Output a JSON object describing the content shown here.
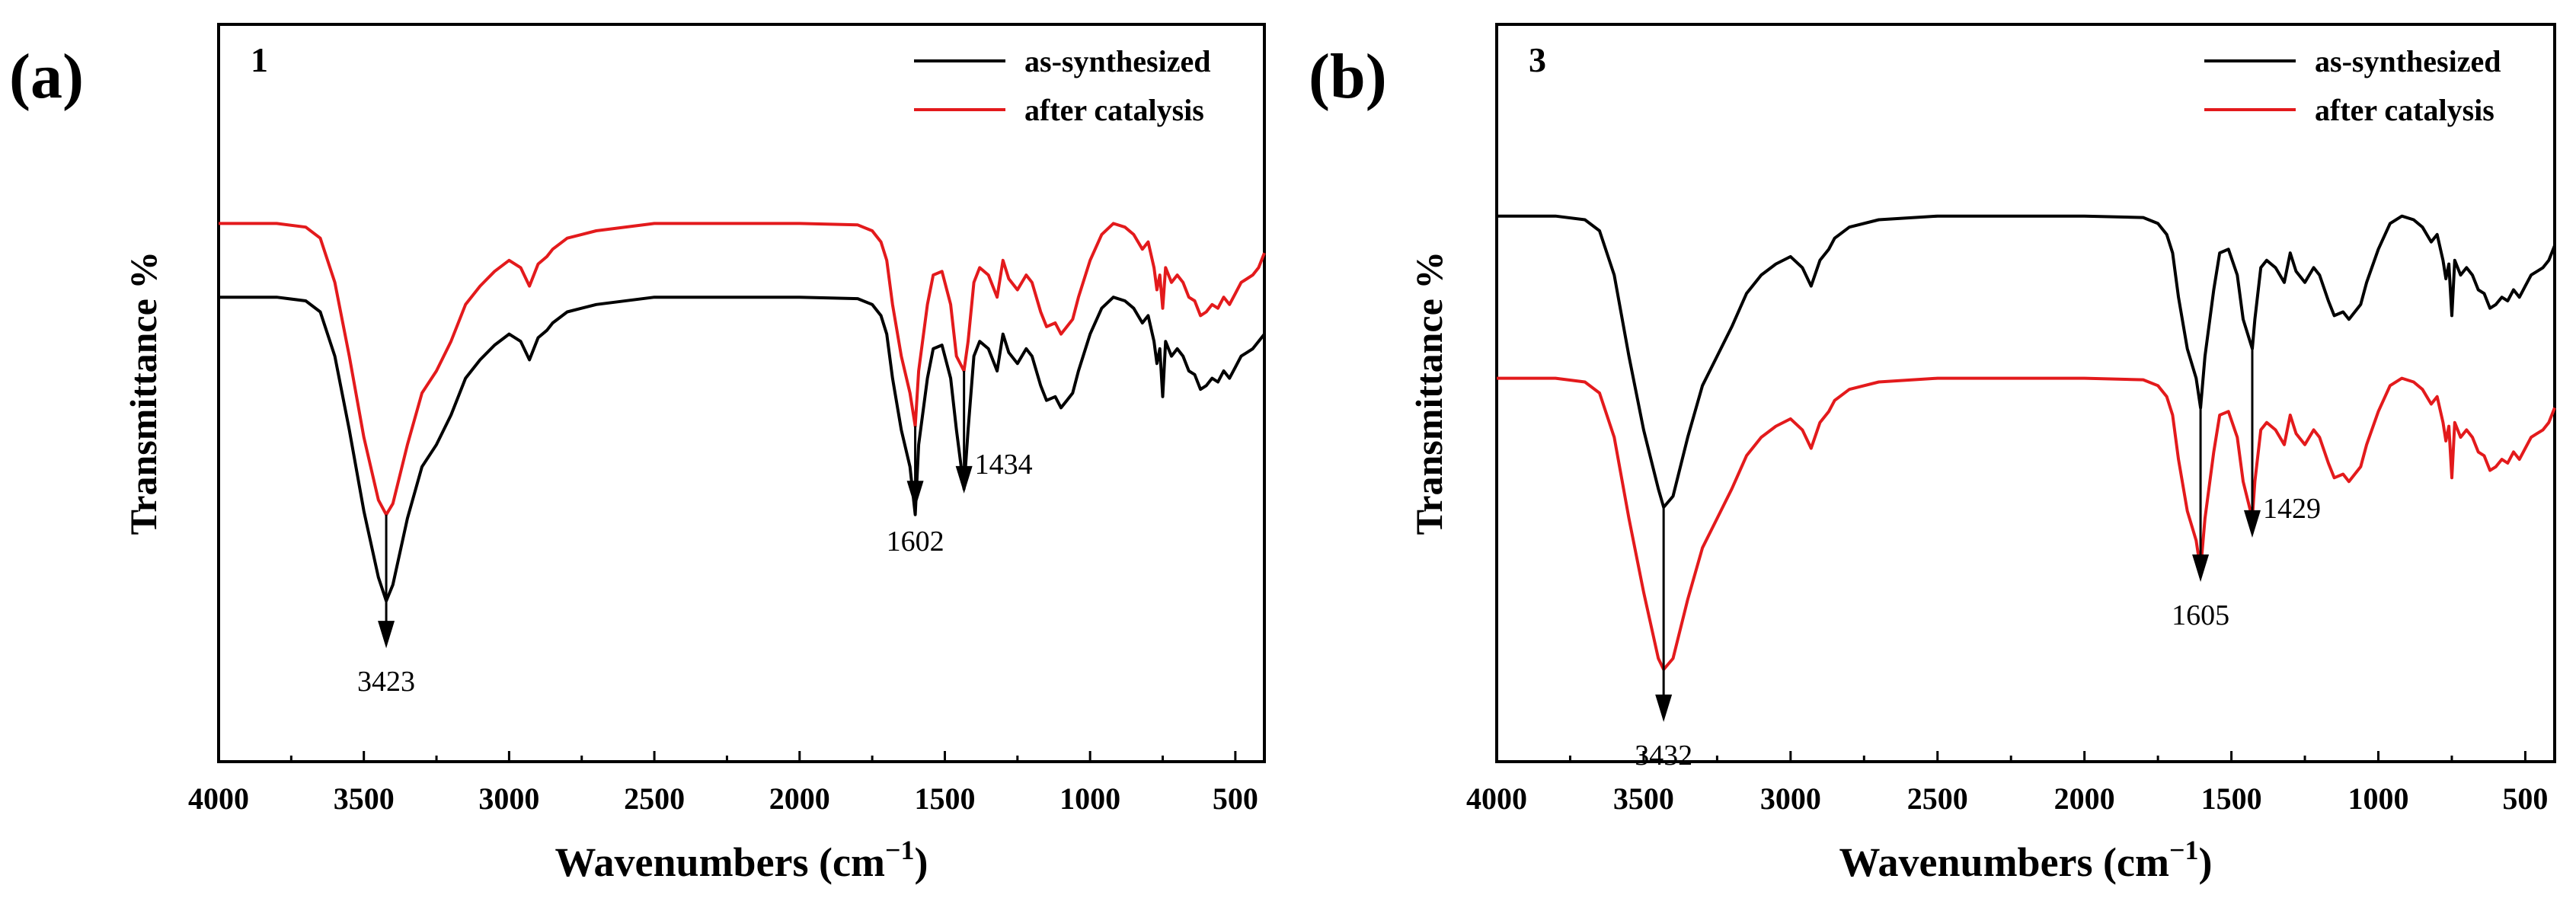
{
  "chart_data": [
    {
      "type": "line",
      "panel_label": "(a)",
      "sample_label": "1",
      "xlabel_main": "Wavenumbers (cm",
      "xlabel_sup": "−1",
      "xlabel_close": ")",
      "ylabel": "Transmittance %",
      "xlim": [
        4000,
        400
      ],
      "xticks": [
        4000,
        3500,
        3000,
        2500,
        2000,
        1500,
        1000,
        500
      ],
      "ylim": [
        0,
        100
      ],
      "yticks_shown": false,
      "legend": [
        {
          "name": "as-synthesized",
          "color": "#000000"
        },
        {
          "name": "after catalysis",
          "color": "#e31a1c"
        }
      ],
      "series": [
        {
          "name": "as-synthesized",
          "color": "#000000",
          "x": [
            4000,
            3800,
            3700,
            3650,
            3600,
            3550,
            3500,
            3450,
            3423,
            3400,
            3350,
            3300,
            3250,
            3200,
            3150,
            3100,
            3050,
            3000,
            2960,
            2930,
            2900,
            2870,
            2850,
            2800,
            2700,
            2500,
            2300,
            2000,
            1800,
            1750,
            1720,
            1700,
            1680,
            1650,
            1620,
            1602,
            1590,
            1560,
            1540,
            1510,
            1480,
            1460,
            1434,
            1420,
            1400,
            1380,
            1350,
            1320,
            1300,
            1280,
            1250,
            1220,
            1200,
            1170,
            1150,
            1120,
            1100,
            1080,
            1060,
            1040,
            1000,
            960,
            920,
            880,
            850,
            820,
            800,
            780,
            770,
            760,
            750,
            740,
            720,
            700,
            680,
            660,
            640,
            620,
            600,
            580,
            560,
            540,
            520,
            500,
            480,
            460,
            440,
            420,
            400
          ],
          "y": [
            63,
            63,
            62.5,
            61,
            55,
            45,
            34,
            25,
            21.8,
            24,
            33,
            40,
            43,
            47,
            52,
            54.5,
            56.5,
            58,
            57,
            54.5,
            57.5,
            58.5,
            59.5,
            61,
            62,
            63,
            63,
            63,
            62.8,
            62,
            60.5,
            58,
            52,
            45,
            40,
            33.5,
            43,
            52,
            56,
            56.5,
            52,
            45,
            37,
            45,
            55,
            57,
            56,
            53,
            58,
            55.5,
            54,
            56,
            55,
            51,
            49,
            49.5,
            48,
            49,
            50,
            53,
            58,
            61.5,
            63,
            62.5,
            61.5,
            59.5,
            60.5,
            57,
            54,
            56,
            49.5,
            57,
            55,
            56,
            55,
            53,
            52.5,
            50.5,
            51,
            52,
            51.5,
            53,
            52,
            53.5,
            55,
            55.5,
            56,
            57,
            58
          ]
        },
        {
          "name": "after catalysis",
          "color": "#e31a1c",
          "x": [
            4000,
            3800,
            3700,
            3650,
            3600,
            3550,
            3500,
            3450,
            3423,
            3400,
            3350,
            3300,
            3250,
            3200,
            3150,
            3100,
            3050,
            3000,
            2960,
            2930,
            2900,
            2870,
            2850,
            2800,
            2700,
            2500,
            2300,
            2000,
            1800,
            1750,
            1720,
            1700,
            1680,
            1650,
            1620,
            1602,
            1590,
            1560,
            1540,
            1510,
            1480,
            1460,
            1434,
            1420,
            1400,
            1380,
            1350,
            1320,
            1300,
            1280,
            1250,
            1220,
            1200,
            1170,
            1150,
            1120,
            1100,
            1080,
            1060,
            1040,
            1000,
            960,
            920,
            880,
            850,
            820,
            800,
            780,
            770,
            760,
            750,
            740,
            720,
            700,
            680,
            660,
            640,
            620,
            600,
            580,
            560,
            540,
            520,
            500,
            480,
            460,
            440,
            420,
            400
          ],
          "y": [
            73,
            73,
            72.5,
            71,
            65,
            55,
            44,
            35.5,
            33.5,
            35,
            43,
            50,
            53,
            57,
            62,
            64.5,
            66.5,
            68,
            67,
            64.5,
            67.5,
            68.5,
            69.5,
            71,
            72,
            73,
            73,
            73,
            72.8,
            72,
            70.5,
            68,
            62,
            55,
            50,
            45.5,
            53,
            62,
            66,
            66.5,
            62,
            55,
            53,
            57,
            65,
            67,
            66,
            63,
            68,
            65.5,
            64,
            66,
            65,
            61,
            59,
            59.5,
            58,
            59,
            60,
            63,
            68,
            71.5,
            73,
            72.5,
            71.5,
            69.5,
            70.5,
            67,
            64,
            66,
            61.5,
            67,
            65,
            66,
            65,
            63,
            62.5,
            60.5,
            61,
            62,
            61.5,
            63,
            62,
            63.5,
            65,
            65.5,
            66,
            67,
            69
          ]
        }
      ],
      "annotations": [
        {
          "label": "3423",
          "x": 3423,
          "y_start": 33.5,
          "y_end": 16
        },
        {
          "label": "1602",
          "x": 1602,
          "y_start": 45.5,
          "y_end": 35
        },
        {
          "label": "1434",
          "x": 1434,
          "y_start": 53,
          "y_end": 37
        }
      ]
    },
    {
      "type": "line",
      "panel_label": "(b)",
      "sample_label": "3",
      "xlabel_main": "Wavenumbers (cm",
      "xlabel_sup": "−1",
      "xlabel_close": ")",
      "ylabel": "Transmittance %",
      "xlim": [
        4000,
        400
      ],
      "xticks": [
        4000,
        3500,
        3000,
        2500,
        2000,
        1500,
        1000,
        500
      ],
      "ylim": [
        0,
        100
      ],
      "yticks_shown": false,
      "legend": [
        {
          "name": "as-synthesized",
          "color": "#000000"
        },
        {
          "name": "after catalysis",
          "color": "#e31a1c"
        }
      ],
      "series": [
        {
          "name": "as-synthesized",
          "color": "#000000",
          "x": [
            4000,
            3800,
            3700,
            3650,
            3600,
            3550,
            3500,
            3450,
            3432,
            3400,
            3350,
            3300,
            3250,
            3200,
            3150,
            3100,
            3050,
            3000,
            2960,
            2930,
            2900,
            2870,
            2850,
            2800,
            2700,
            2500,
            2300,
            2000,
            1800,
            1750,
            1720,
            1700,
            1680,
            1650,
            1620,
            1605,
            1590,
            1560,
            1540,
            1510,
            1480,
            1460,
            1429,
            1420,
            1400,
            1380,
            1350,
            1320,
            1300,
            1280,
            1250,
            1220,
            1200,
            1170,
            1150,
            1120,
            1100,
            1080,
            1060,
            1040,
            1000,
            960,
            920,
            880,
            850,
            820,
            800,
            780,
            770,
            760,
            750,
            740,
            720,
            700,
            680,
            660,
            640,
            620,
            600,
            580,
            560,
            540,
            520,
            500,
            480,
            460,
            440,
            420,
            400
          ],
          "y": [
            74,
            74,
            73.5,
            72,
            66,
            55,
            45,
            37,
            34.5,
            36,
            44,
            51,
            55,
            59,
            63.5,
            66,
            67.5,
            68.5,
            67,
            64.5,
            68,
            69.5,
            71,
            72.5,
            73.5,
            74,
            74,
            74,
            73.8,
            73,
            71.5,
            69,
            63,
            56,
            52,
            48,
            55,
            64,
            69,
            69.5,
            66,
            60,
            56,
            60,
            67,
            68,
            67,
            65,
            69,
            66.5,
            65,
            67,
            66,
            62.5,
            60.5,
            61,
            60,
            61,
            62,
            65,
            69.5,
            73,
            74,
            73.5,
            72.5,
            70.5,
            71.5,
            68,
            65.5,
            67.5,
            60.5,
            68,
            66,
            67,
            66,
            64,
            63.5,
            61.5,
            62,
            63,
            62.5,
            64,
            63,
            64.5,
            66,
            66.5,
            67,
            68,
            70
          ]
        },
        {
          "name": "after catalysis",
          "color": "#e31a1c",
          "x": [
            4000,
            3800,
            3700,
            3650,
            3600,
            3550,
            3500,
            3450,
            3432,
            3400,
            3350,
            3300,
            3250,
            3200,
            3150,
            3100,
            3050,
            3000,
            2960,
            2930,
            2900,
            2870,
            2850,
            2800,
            2700,
            2500,
            2300,
            2000,
            1800,
            1750,
            1720,
            1700,
            1680,
            1650,
            1620,
            1605,
            1590,
            1560,
            1540,
            1510,
            1480,
            1460,
            1429,
            1420,
            1400,
            1380,
            1350,
            1320,
            1300,
            1280,
            1250,
            1220,
            1200,
            1170,
            1150,
            1120,
            1100,
            1080,
            1060,
            1040,
            1000,
            960,
            920,
            880,
            850,
            820,
            800,
            780,
            770,
            760,
            750,
            740,
            720,
            700,
            680,
            660,
            640,
            620,
            600,
            580,
            560,
            540,
            520,
            500,
            480,
            460,
            440,
            420,
            400
          ],
          "y": [
            52,
            52,
            51.5,
            50,
            44,
            33,
            23,
            14,
            12.5,
            14,
            22,
            29,
            33,
            37,
            41.5,
            44,
            45.5,
            46.5,
            45,
            42.5,
            46,
            47.5,
            49,
            50.5,
            51.5,
            52,
            52,
            52,
            51.8,
            51,
            49.5,
            47,
            41,
            34,
            30,
            26,
            33,
            42,
            47,
            47.5,
            44,
            38,
            33,
            38,
            45,
            46,
            45,
            43,
            47,
            44.5,
            43,
            45,
            44,
            40.5,
            38.5,
            39,
            38,
            39,
            40,
            43,
            47.5,
            51,
            52,
            51.5,
            50.5,
            48.5,
            49.5,
            46,
            43.5,
            45.5,
            38.5,
            46,
            44,
            45,
            44,
            42,
            41.5,
            39.5,
            40,
            41,
            40.5,
            42,
            41,
            42.5,
            44,
            44.5,
            45,
            46,
            48
          ]
        }
      ],
      "annotations": [
        {
          "label": "3432",
          "x": 3432,
          "y_start": 34.5,
          "y_end": 6
        },
        {
          "label": "1605",
          "x": 1605,
          "y_start": 48,
          "y_end": 25
        },
        {
          "label": "1429",
          "x": 1429,
          "y_start": 56,
          "y_end": 31
        }
      ]
    }
  ]
}
